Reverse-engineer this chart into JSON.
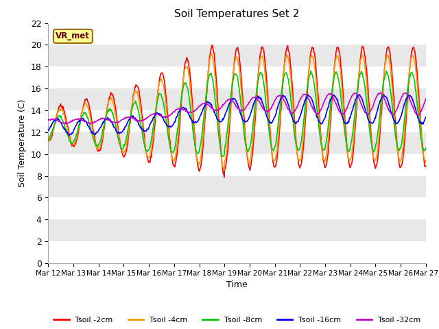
{
  "title": "Soil Temperatures Set 2",
  "xlabel": "Time",
  "ylabel": "Soil Temperature (C)",
  "ylim": [
    0,
    22
  ],
  "yticks": [
    0,
    2,
    4,
    6,
    8,
    10,
    12,
    14,
    16,
    18,
    20,
    22
  ],
  "bg_color": "#ffffff",
  "plot_bg_color": "#ffffff",
  "band_colors": [
    "#ffffff",
    "#e8e8e8"
  ],
  "legend_label": "VR_met",
  "series_colors": {
    "Tsoil -2cm": "#ff0000",
    "Tsoil -4cm": "#ff9900",
    "Tsoil -8cm": "#00cc00",
    "Tsoil -16cm": "#0000ff",
    "Tsoil -32cm": "#cc00cc"
  },
  "x_tick_labels": [
    "Mar 12",
    "Mar 13",
    "Mar 14",
    "Mar 15",
    "Mar 16",
    "Mar 17",
    "Mar 18",
    "Mar 19",
    "Mar 20",
    "Mar 21",
    "Mar 22",
    "Mar 23",
    "Mar 24",
    "Mar 25",
    "Mar 26",
    "Mar 27"
  ]
}
